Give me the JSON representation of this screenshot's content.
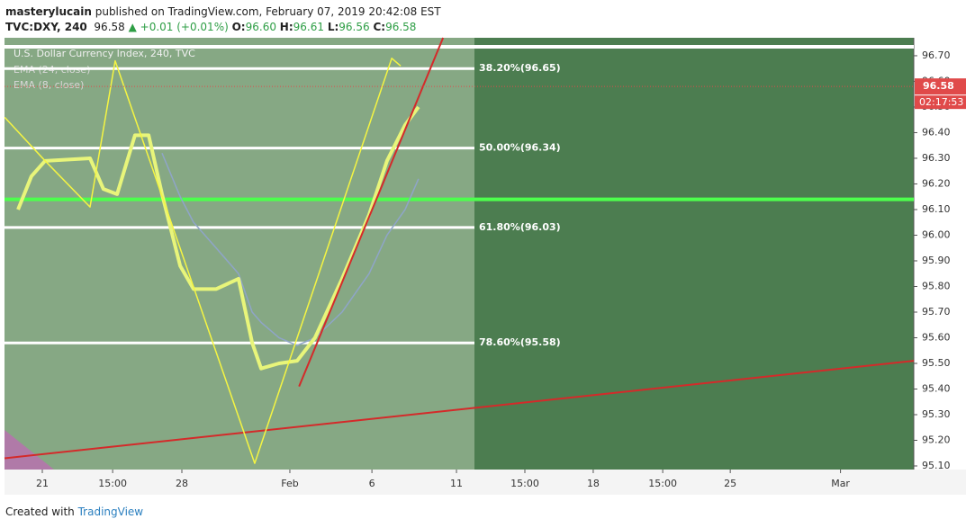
{
  "header": {
    "publisher": "masterylucain",
    "published": "published on TradingView.com, February 07, 2019 20:42:08 EST",
    "symbol": "TVC:DXY, 240",
    "last": "96.58",
    "change": "▲ +0.01 (+0.01%)",
    "ohlc": [
      {
        "label": "O:",
        "value": "96.60"
      },
      {
        "label": "H:",
        "value": "96.61"
      },
      {
        "label": "L:",
        "value": "96.56"
      },
      {
        "label": "C:",
        "value": "96.58"
      }
    ]
  },
  "footer": {
    "text": "Created with",
    "brand": "TradingView"
  },
  "chart_data": {
    "type": "line",
    "title": "U.S. Dollar Currency Index, 240, TVC",
    "x": [
      -0.87,
      -0.39,
      0.1,
      1.71,
      2.19,
      2.68,
      3.32,
      3.81,
      4.29,
      4.94,
      5.42,
      6.23,
      7.03,
      7.52,
      7.84,
      8.48,
      9.13,
      9.77,
      10.74,
      11.71,
      12.35,
      13.0,
      13.48
    ],
    "series": [
      {
        "name": "EMA (24, close)",
        "color": "#8fa5c8",
        "values": [
          null,
          null,
          null,
          null,
          null,
          null,
          null,
          null,
          96.32,
          96.15,
          96.05,
          95.95,
          95.85,
          95.7,
          95.66,
          95.6,
          95.57,
          95.6,
          95.7,
          95.85,
          96.0,
          96.1,
          96.22
        ]
      },
      {
        "name": "EMA (8, close)",
        "color": "#e8f57a",
        "values": [
          96.1,
          96.23,
          96.29,
          96.3,
          96.18,
          96.16,
          96.39,
          96.39,
          96.16,
          95.88,
          95.79,
          95.79,
          95.83,
          95.58,
          95.48,
          95.5,
          95.51,
          95.6,
          95.83,
          96.08,
          96.29,
          96.43,
          96.5
        ]
      }
    ],
    "xlim": [
      -1.355,
      31.226
    ],
    "ylim": [
      95.086,
      96.77
    ],
    "xticks": [
      {
        "value": 0,
        "label": "21"
      },
      {
        "value": 2.52,
        "label": "15:00"
      },
      {
        "value": 5,
        "label": "28"
      },
      {
        "value": 8.87,
        "label": "Feb"
      },
      {
        "value": 11.81,
        "label": "6"
      },
      {
        "value": 14.84,
        "label": "11"
      },
      {
        "value": 17.29,
        "label": "15:00"
      },
      {
        "value": 19.74,
        "label": "18"
      },
      {
        "value": 22.23,
        "label": "15:00"
      },
      {
        "value": 24.65,
        "label": "25"
      },
      {
        "value": 28.6,
        "label": "Mar"
      }
    ],
    "yticks": [
      {
        "value": 95.1,
        "label": "95.10"
      },
      {
        "value": 95.2,
        "label": "95.20"
      },
      {
        "value": 95.3,
        "label": "95.30"
      },
      {
        "value": 95.4,
        "label": "95.40"
      },
      {
        "value": 95.5,
        "label": "95.50"
      },
      {
        "value": 95.6,
        "label": "95.60"
      },
      {
        "value": 95.7,
        "label": "95.70"
      },
      {
        "value": 95.8,
        "label": "95.80"
      },
      {
        "value": 95.9,
        "label": "95.90"
      },
      {
        "value": 96.0,
        "label": "96.00"
      },
      {
        "value": 96.1,
        "label": "96.10"
      },
      {
        "value": 96.2,
        "label": "96.20"
      },
      {
        "value": 96.3,
        "label": "96.30"
      },
      {
        "value": 96.4,
        "label": "96.40"
      },
      {
        "value": 96.5,
        "label": "96.50"
      },
      {
        "value": 96.6,
        "label": "96.60"
      },
      {
        "value": 96.7,
        "label": "96.70"
      }
    ],
    "fib_levels": [
      {
        "value": 96.65,
        "label": "38.20%(96.65)"
      },
      {
        "value": 96.34,
        "label": "50.00%(96.34)"
      },
      {
        "value": 96.03,
        "label": "61.80%(96.03)"
      },
      {
        "value": 95.58,
        "label": "78.60%(95.58)"
      }
    ],
    "level_lines": [
      {
        "value": 96.735,
        "color": "#ffffff"
      },
      {
        "value": 96.14,
        "color": "#4dff4d"
      }
    ],
    "last_price": {
      "value": 96.58,
      "label": "96.58",
      "countdown": "02:17:53",
      "color": "#e04a4a"
    },
    "trendlines": [
      {
        "x": [
          -1.355,
          31.226
        ],
        "y": [
          95.13,
          95.51
        ],
        "color": "#d42a2a"
      },
      {
        "x": [
          9.2,
          14.36
        ],
        "y": [
          95.41,
          96.77
        ],
        "color": "#d42a2a"
      }
    ],
    "zigzag": {
      "x": [
        -1.35,
        0.1,
        1.71,
        2.61,
        7.61,
        12.52,
        12.84
      ],
      "y": [
        96.46,
        96.29,
        96.11,
        96.68,
        95.11,
        96.69,
        96.66
      ],
      "color": "#f5f542"
    }
  }
}
